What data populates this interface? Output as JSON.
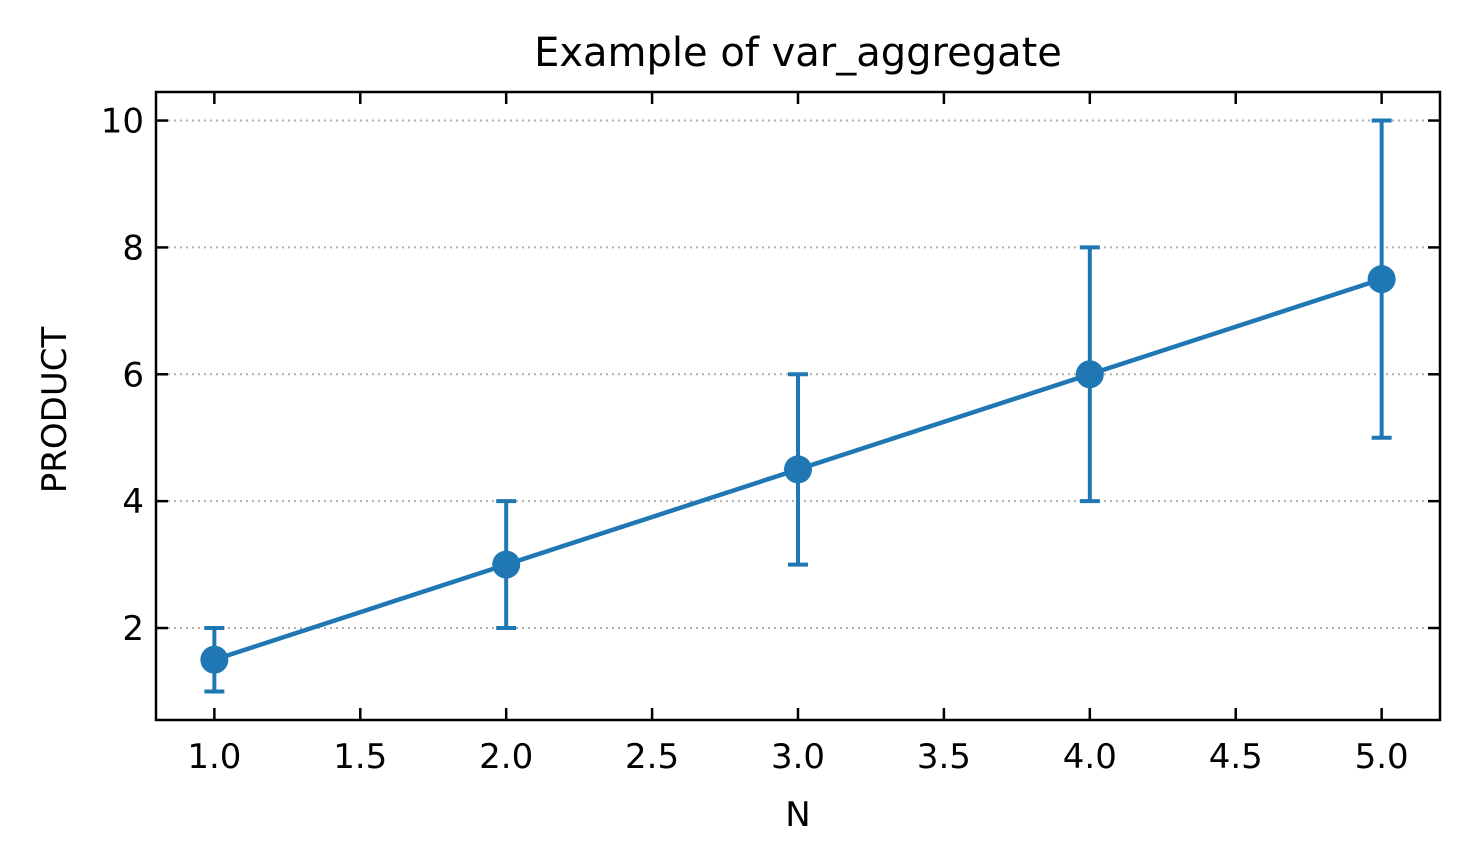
{
  "chart_data": {
    "type": "line",
    "title": "Example of var_aggregate",
    "xlabel": "N",
    "ylabel": "PRODUCT",
    "x": [
      1.0,
      2.0,
      3.0,
      4.0,
      5.0
    ],
    "series": [
      {
        "values": [
          1.5,
          3.0,
          4.5,
          6.0,
          7.5
        ],
        "error_low": [
          1.0,
          2.0,
          3.0,
          4.0,
          5.0
        ],
        "error_high": [
          2.0,
          4.0,
          6.0,
          8.0,
          10.0
        ],
        "color": "#1f77b4",
        "marker": "circle"
      }
    ],
    "xlim": [
      0.8,
      5.2
    ],
    "ylim": [
      0.55,
      10.45
    ],
    "xticks": [
      1.0,
      1.5,
      2.0,
      2.5,
      3.0,
      3.5,
      4.0,
      4.5,
      5.0
    ],
    "xtick_labels": [
      "1.0",
      "1.5",
      "2.0",
      "2.5",
      "3.0",
      "3.5",
      "4.0",
      "4.5",
      "5.0"
    ],
    "yticks": [
      2,
      4,
      6,
      8,
      10
    ],
    "ytick_labels": [
      "2",
      "4",
      "6",
      "8",
      "10"
    ],
    "grid": "y-dotted",
    "legend": "none"
  }
}
